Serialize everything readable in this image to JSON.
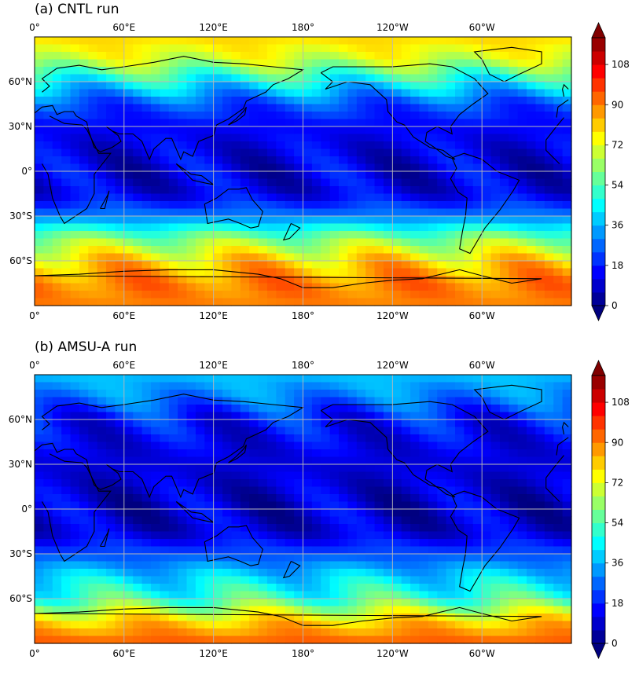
{
  "chart_data": [
    {
      "type": "heatmap",
      "title": "(a) CNTL run",
      "x_tick_labels": [
        "0°",
        "60°E",
        "120°E",
        "180°",
        "120°W",
        "60°W"
      ],
      "y_tick_labels": [
        "60°N",
        "30°N",
        "0°",
        "30°S",
        "60°S"
      ],
      "colorbar": {
        "ticks": [
          "0",
          "18",
          "36",
          "54",
          "72",
          "90",
          "108"
        ],
        "range": [
          0,
          120
        ],
        "extend": "both",
        "colormap": "jet"
      },
      "zonal_profile": {
        "latitudes": [
          90,
          75,
          60,
          45,
          30,
          15,
          0,
          -15,
          -30,
          -45,
          -60,
          -75,
          -90
        ],
        "values": [
          80,
          70,
          45,
          24,
          15,
          12,
          11,
          12,
          30,
          60,
          80,
          90,
          90
        ]
      }
    },
    {
      "type": "heatmap",
      "title": "(b) AMSU-A run",
      "x_tick_labels": [
        "0°",
        "60°E",
        "120°E",
        "180°",
        "120°W",
        "60°W"
      ],
      "y_tick_labels": [
        "60°N",
        "30°N",
        "0°",
        "30°S",
        "60°S"
      ],
      "colorbar": {
        "ticks": [
          "0",
          "18",
          "36",
          "54",
          "72",
          "90",
          "108"
        ],
        "range": [
          0,
          120
        ],
        "extend": "both",
        "colormap": "jet"
      },
      "zonal_profile": {
        "latitudes": [
          90,
          75,
          60,
          45,
          30,
          15,
          0,
          -15,
          -30,
          -45,
          -60,
          -75,
          -90
        ],
        "values": [
          38,
          30,
          17,
          13,
          11,
          10,
          9,
          10,
          24,
          40,
          52,
          80,
          95
        ]
      }
    }
  ]
}
